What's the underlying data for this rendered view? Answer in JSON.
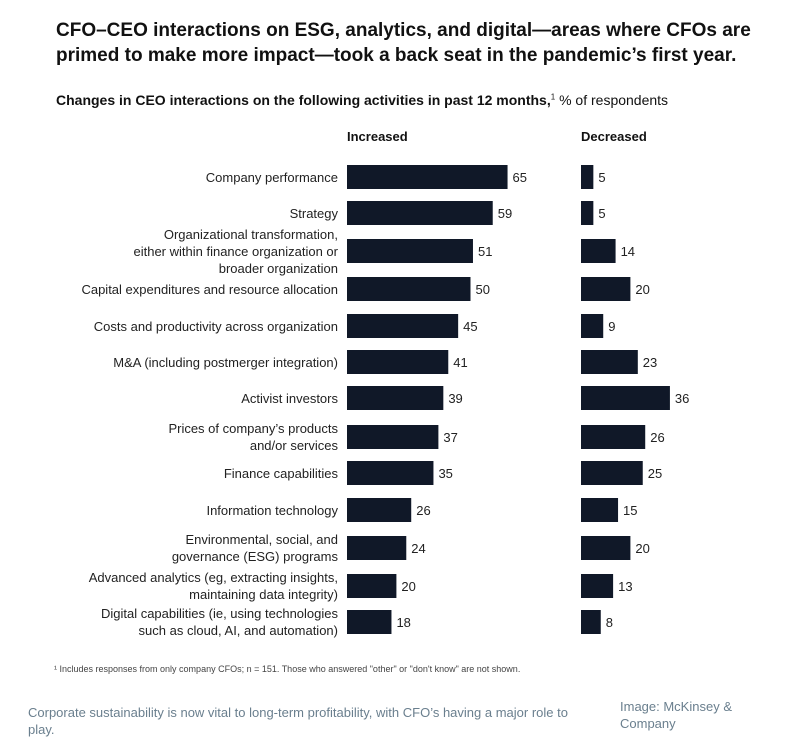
{
  "title": "CFO–CEO interactions on ESG, analytics, and digital—areas where CFOs are primed to make more impact—took a back seat in the pandemic’s first year.",
  "subtitle_bold": "Changes in CEO interactions on the following activities in past 12 months,",
  "subtitle_sup": "1",
  "subtitle_rest": " % of respondents",
  "footnote": "¹ Includes responses from only company CFOs; n = 151. Those who answered \"other\" or \"don't know\" are not shown.",
  "caption": "Corporate sustainability is now vital to long-term profitability, with CFO’s having a major role to play.",
  "credit": "Image: McKinsey & Company",
  "colors": {
    "bar": "#101828",
    "text": "#111111",
    "caption": "#6a7f8e"
  },
  "chart_data": {
    "type": "bar",
    "orientation": "horizontal",
    "categories": [
      "Company performance",
      "Strategy",
      "Organizational transformation,\neither within finance organization or\nbroader organization",
      "Capital expenditures and resource allocation",
      "Costs and productivity across organization",
      "M&A (including postmerger integration)",
      "Activist investors",
      "Prices of company’s products\nand/or services",
      "Finance capabilities",
      "Information technology",
      "Environmental, social, and\ngovernance (ESG) programs",
      "Advanced analytics (eg, extracting insights,\nmaintaining data integrity)",
      "Digital capabilities (ie, using technologies\nsuch as cloud, AI, and automation)"
    ],
    "series": [
      {
        "name": "Increased",
        "values": [
          65,
          59,
          51,
          50,
          45,
          41,
          39,
          37,
          35,
          26,
          24,
          20,
          18
        ]
      },
      {
        "name": "Decreased",
        "values": [
          5,
          5,
          14,
          20,
          9,
          23,
          36,
          26,
          25,
          15,
          20,
          13,
          8
        ]
      }
    ]
  }
}
